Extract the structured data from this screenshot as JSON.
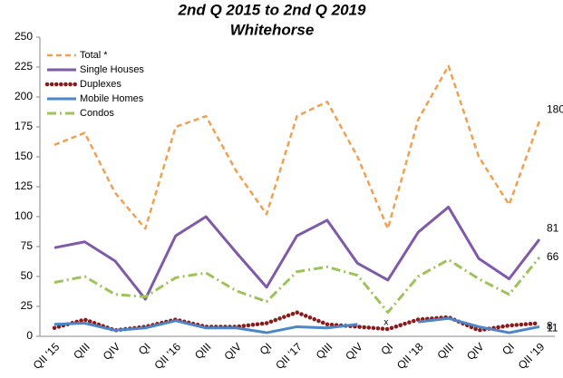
{
  "chart_data": {
    "type": "line",
    "title": [
      "2nd Q 2015 to 2nd Q 2019",
      "Whitehorse"
    ],
    "categories": [
      "QII '15",
      "QIII",
      "QIV",
      "QI",
      "QII '16",
      "QIII",
      "QIV",
      "QI",
      "QII '17",
      "QIII",
      "QIV",
      "QI",
      "QII '18",
      "QIII",
      "QIV",
      "QI",
      "QII '19"
    ],
    "series": [
      {
        "name": "Total *",
        "color": "#f0a050",
        "dash": "6,4",
        "width": 2.5,
        "values": [
          160,
          170,
          120,
          90,
          175,
          184,
          138,
          102,
          184,
          196,
          150,
          90,
          181,
          226,
          150,
          110,
          180
        ]
      },
      {
        "name": "Single Houses",
        "color": "#7f5aa8",
        "dash": "",
        "width": 3,
        "values": [
          74,
          79,
          63,
          31,
          84,
          100,
          70,
          41,
          84,
          97,
          61,
          47,
          87,
          108,
          65,
          48,
          81
        ]
      },
      {
        "name": "Duplexes",
        "color": "#8b1a1a",
        "dash": "0.1,5",
        "width": 4.5,
        "values": [
          7,
          14,
          5,
          8,
          14,
          8,
          8,
          11,
          20,
          10,
          8,
          6,
          14,
          16,
          5,
          9,
          11
        ]
      },
      {
        "name": "Mobile Homes",
        "color": "#4a86c8",
        "dash": "",
        "width": 3,
        "values": [
          10,
          11,
          5,
          7,
          13,
          7,
          7,
          3,
          8,
          7,
          10,
          null,
          12,
          15,
          8,
          3,
          8
        ]
      },
      {
        "name": "Condos",
        "color": "#9dc35a",
        "dash": "10,4,2,4",
        "width": 3,
        "values": [
          45,
          50,
          35,
          33,
          49,
          53,
          38,
          29,
          54,
          58,
          51,
          20,
          50,
          64,
          48,
          35,
          66
        ]
      }
    ],
    "annotation": "x",
    "ylim": [
      0,
      250
    ],
    "yticks": [
      0,
      25,
      50,
      75,
      100,
      125,
      150,
      175,
      200,
      225,
      250
    ],
    "legend": "upper-left"
  }
}
